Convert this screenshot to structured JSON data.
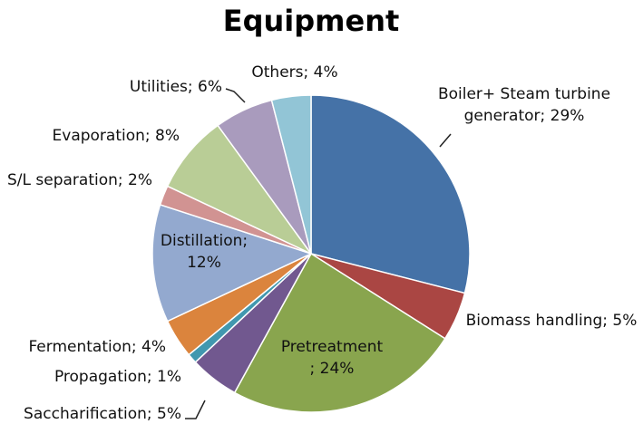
{
  "chart_data": {
    "type": "pie",
    "title": "Equipment",
    "slices": [
      {
        "name": "Boiler+ Steam turbine generator",
        "value": 29,
        "label_lines": [
          "Boiler+ Steam turbine",
          "generator; 29%"
        ],
        "color": "#4572A7"
      },
      {
        "name": "Biomass handling",
        "value": 5,
        "label_lines": [
          "Biomass handling; 5%"
        ],
        "color": "#AA4643"
      },
      {
        "name": "Pretreatment",
        "value": 24,
        "label_lines": [
          "Pretreatment",
          "; 24%"
        ],
        "color": "#89A54E"
      },
      {
        "name": "Saccharification",
        "value": 5,
        "label_lines": [
          "Saccharification; 5%"
        ],
        "color": "#71588F"
      },
      {
        "name": "Propagation",
        "value": 1,
        "label_lines": [
          "Propagation; 1%"
        ],
        "color": "#4198AF"
      },
      {
        "name": "Fermentation",
        "value": 4,
        "label_lines": [
          "Fermentation; 4%"
        ],
        "color": "#DB843D"
      },
      {
        "name": "Distillation",
        "value": 12,
        "label_lines": [
          "Distillation;",
          "12%"
        ],
        "color": "#93A9CF"
      },
      {
        "name": "S/L separation",
        "value": 2,
        "label_lines": [
          "S/L separation; 2%"
        ],
        "color": "#D19392"
      },
      {
        "name": "Evaporation",
        "value": 8,
        "label_lines": [
          "Evaporation; 8%"
        ],
        "color": "#B9CD96"
      },
      {
        "name": "Utilities",
        "value": 6,
        "label_lines": [
          "Utilities; 6%"
        ],
        "color": "#A99BBD"
      },
      {
        "name": "Others",
        "value": 4,
        "label_lines": [
          "Others; 4%"
        ],
        "color": "#92C5D6"
      }
    ]
  }
}
